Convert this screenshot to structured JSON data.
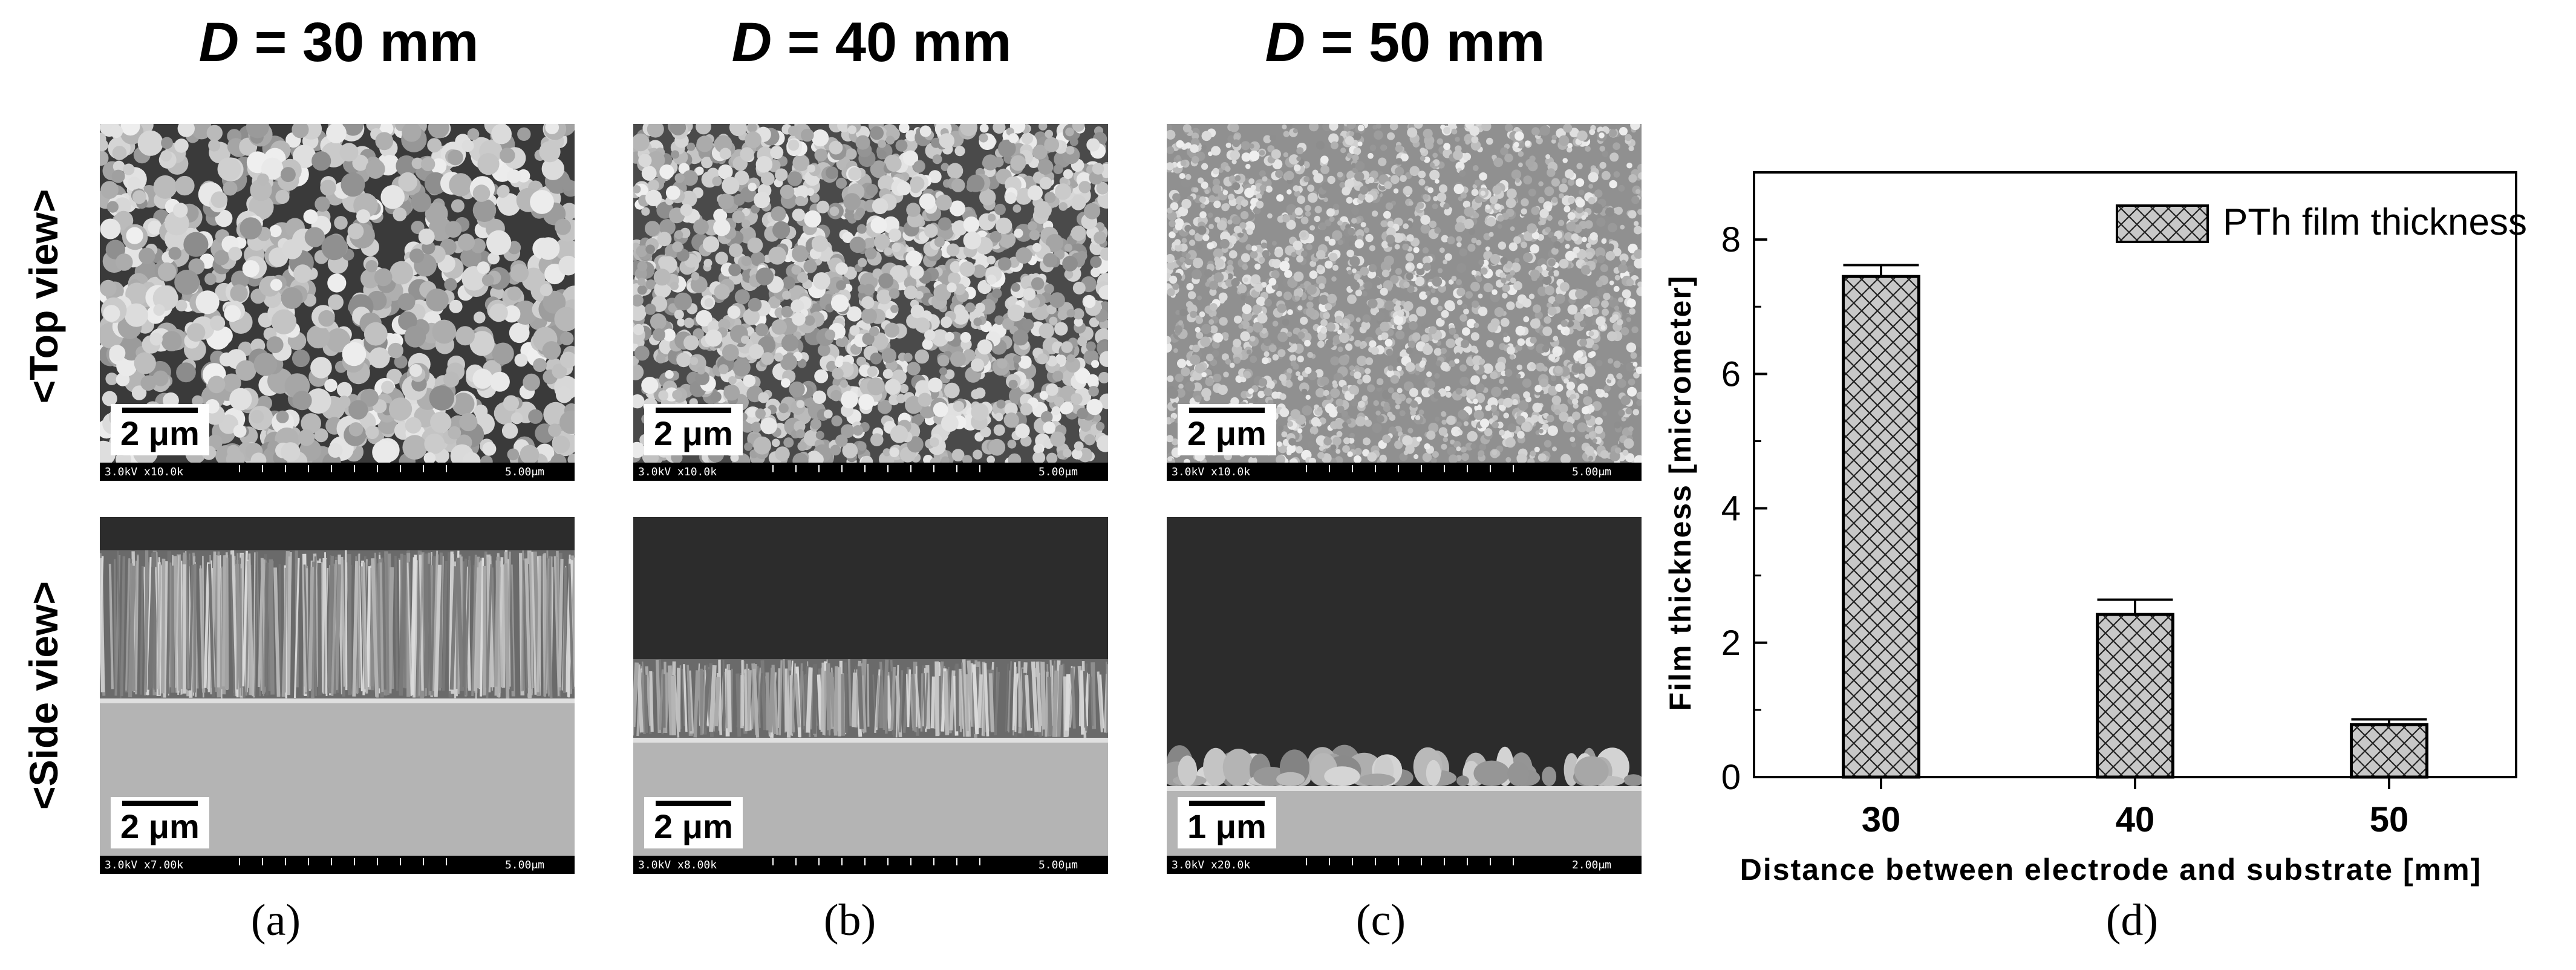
{
  "columns": [
    {
      "var": "D",
      "rest": " = 30 mm"
    },
    {
      "var": "D",
      "rest": " = 40 mm"
    },
    {
      "var": "D",
      "rest": " = 50 mm"
    }
  ],
  "rows": {
    "top": "<Top view>",
    "side": "<Side view>"
  },
  "panels": [
    {
      "scale": "2 μm",
      "info_left": "3.0kV x10.0k",
      "info_right": "5.00μm"
    },
    {
      "scale": "2 μm",
      "info_left": "3.0kV x10.0k",
      "info_right": "5.00μm"
    },
    {
      "scale": "2 μm",
      "info_left": "3.0kV x10.0k",
      "info_right": "5.00μm"
    },
    {
      "scale": "2 μm",
      "info_left": "3.0kV x7.00k",
      "info_right": "5.00μm"
    },
    {
      "scale": "2 μm",
      "info_left": "3.0kV x8.00k",
      "info_right": "5.00μm"
    },
    {
      "scale": "1 μm",
      "info_left": "3.0kV x20.0k",
      "info_right": "2.00μm"
    }
  ],
  "sublabels": [
    "(a)",
    "(b)",
    "(c)",
    "(d)"
  ],
  "chart_data": {
    "type": "bar",
    "categories": [
      "30",
      "40",
      "50"
    ],
    "series": [
      {
        "name": "PTh film thickness",
        "values": [
          7.45,
          2.42,
          0.78
        ],
        "errors": [
          0.17,
          0.22,
          0.08
        ]
      }
    ],
    "title": "",
    "xlabel": "Distance between electrode and substrate [mm]",
    "ylabel": "Film thickness [micrometer]",
    "ylim": [
      0,
      9
    ],
    "yticks": [
      0,
      2,
      4,
      6,
      8
    ],
    "legend": "top-right",
    "pattern": "crosshatch",
    "bar_fill": "#c8c8c8",
    "grid": false
  }
}
